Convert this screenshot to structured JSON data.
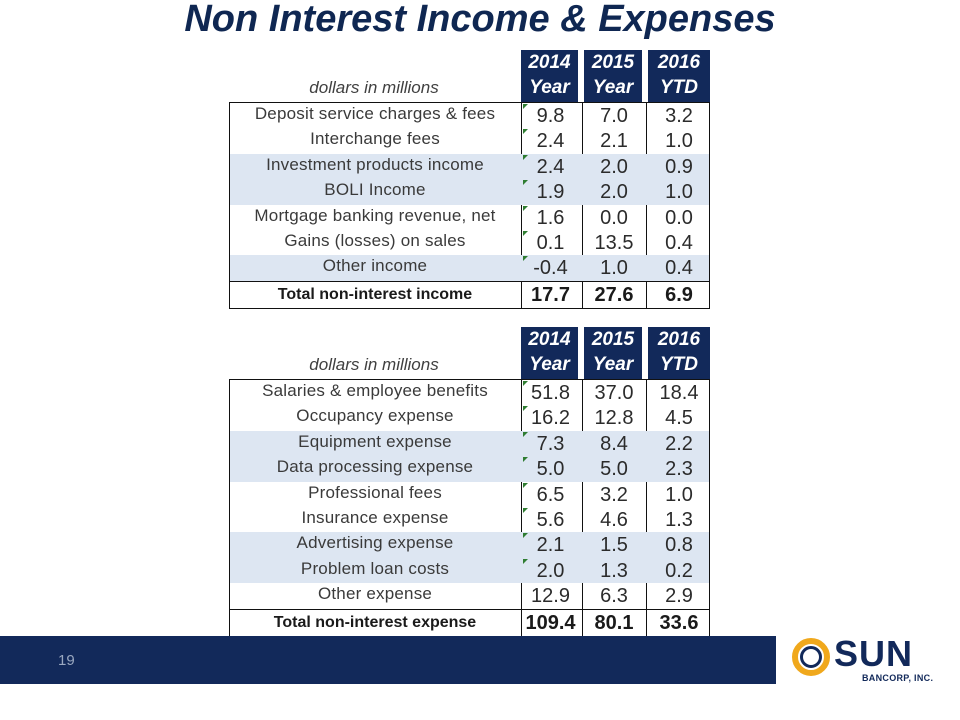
{
  "title": "Non Interest Income & Expenses",
  "income_table": {
    "unit_label": "dollars in millions",
    "columns": [
      {
        "line1": "2014",
        "line2": "Year"
      },
      {
        "line1": "2015",
        "line2": "Year"
      },
      {
        "line1": "2016",
        "line2": "YTD"
      }
    ],
    "rows": [
      {
        "label": "Deposit service charges & fees",
        "values": [
          "9.8",
          "7.0",
          "3.2"
        ]
      },
      {
        "label": "Interchange fees",
        "values": [
          "2.4",
          "2.1",
          "1.0"
        ]
      },
      {
        "label": "Investment products income",
        "values": [
          "2.4",
          "2.0",
          "0.9"
        ]
      },
      {
        "label": "BOLI Income",
        "values": [
          "1.9",
          "2.0",
          "1.0"
        ]
      },
      {
        "label": "Mortgage banking revenue, net",
        "values": [
          "1.6",
          "0.0",
          "0.0"
        ]
      },
      {
        "label": "Gains (losses) on sales",
        "values": [
          "0.1",
          "13.5",
          "0.4"
        ]
      },
      {
        "label": "Other income",
        "values": [
          "-0.4",
          "1.0",
          "0.4"
        ]
      }
    ],
    "total": {
      "label": "Total non-interest income",
      "values": [
        "17.7",
        "27.6",
        "6.9"
      ]
    }
  },
  "expense_table": {
    "unit_label": "dollars in millions",
    "columns": [
      {
        "line1": "2014",
        "line2": "Year"
      },
      {
        "line1": "2015",
        "line2": "Year"
      },
      {
        "line1": "2016",
        "line2": "YTD"
      }
    ],
    "rows": [
      {
        "label": "Salaries & employee benefits",
        "values": [
          "51.8",
          "37.0",
          "18.4"
        ]
      },
      {
        "label": "Occupancy expense",
        "values": [
          "16.2",
          "12.8",
          "4.5"
        ]
      },
      {
        "label": "Equipment expense",
        "values": [
          "7.3",
          "8.4",
          "2.2"
        ]
      },
      {
        "label": "Data processing expense",
        "values": [
          "5.0",
          "5.0",
          "2.3"
        ]
      },
      {
        "label": "Professional fees",
        "values": [
          "6.5",
          "3.2",
          "1.0"
        ]
      },
      {
        "label": "Insurance expense",
        "values": [
          "5.6",
          "4.6",
          "1.3"
        ]
      },
      {
        "label": "Advertising expense",
        "values": [
          "2.1",
          "1.5",
          "0.8"
        ]
      },
      {
        "label": "Problem loan costs",
        "values": [
          "2.0",
          "1.3",
          "0.2"
        ]
      },
      {
        "label": "Other expense",
        "values": [
          "12.9",
          "6.3",
          "2.9"
        ]
      }
    ],
    "total": {
      "label": "Total non-interest expense",
      "values": [
        "109.4",
        "80.1",
        "33.6"
      ]
    }
  },
  "footer": {
    "page_number": "19",
    "logo_text": "SUN",
    "logo_subtext": "BANCORP, INC."
  },
  "colors": {
    "navy": "#12295a",
    "row_shade": "#dde6f2",
    "logo_gold": "#f0a81c"
  }
}
